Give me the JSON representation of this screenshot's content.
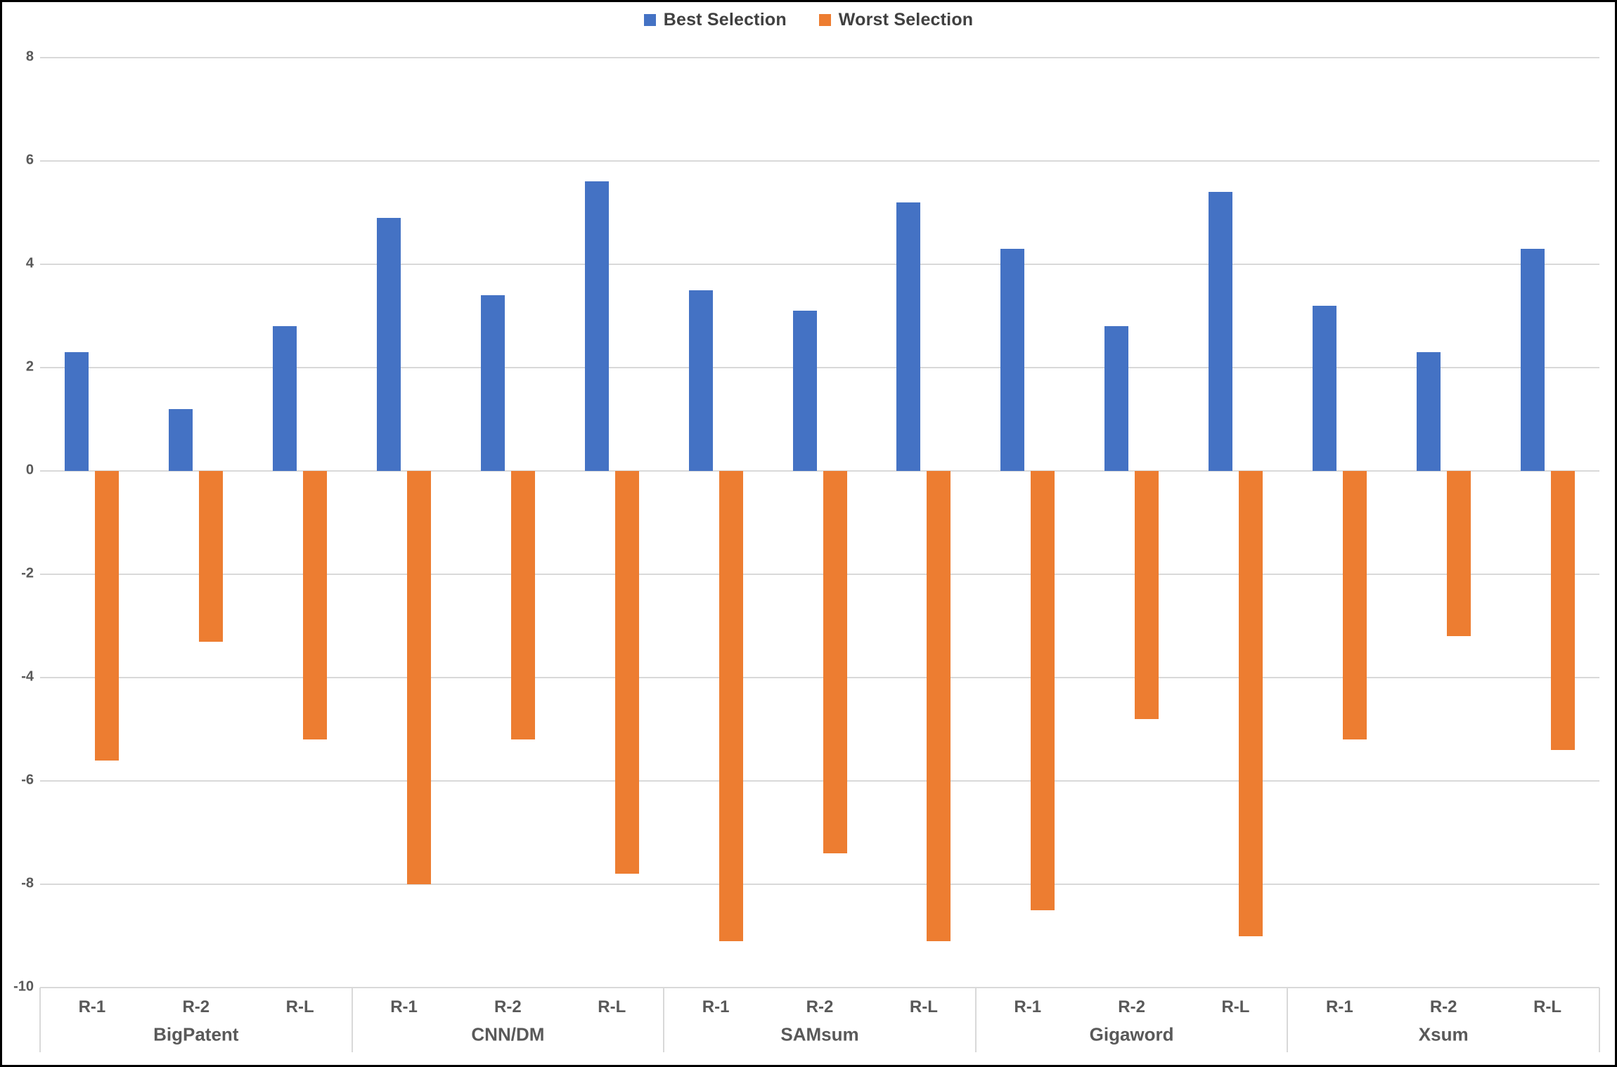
{
  "legend": {
    "items": [
      {
        "label": "Best Selection",
        "color": "#4472C4"
      },
      {
        "label": "Worst Selection",
        "color": "#ED7D31"
      }
    ]
  },
  "colors": {
    "best": "#4472C4",
    "worst": "#ED7D31",
    "gridline": "#D9D9D9",
    "axis_text": "#595959",
    "legend_text": "#404040",
    "background": "#FFFFFF",
    "frame": "#000000"
  },
  "chart_data": {
    "type": "bar",
    "title": "",
    "groups": [
      "BigPatent",
      "CNN/DM",
      "SAMsum",
      "Gigaword",
      "Xsum"
    ],
    "subcategories": [
      "R-1",
      "R-2",
      "R-L"
    ],
    "series": [
      {
        "name": "Best Selection",
        "color": "#4472C4",
        "values": [
          [
            2.3,
            1.2,
            2.8
          ],
          [
            4.9,
            3.4,
            5.6
          ],
          [
            3.5,
            3.1,
            5.2
          ],
          [
            4.3,
            2.8,
            5.4
          ],
          [
            3.2,
            2.3,
            4.3
          ]
        ]
      },
      {
        "name": "Worst Selection",
        "color": "#ED7D31",
        "values": [
          [
            -5.6,
            -3.3,
            -5.2
          ],
          [
            -8.0,
            -5.2,
            -7.8
          ],
          [
            -9.1,
            -7.4,
            -9.1
          ],
          [
            -8.5,
            -4.8,
            -9.0
          ],
          [
            -5.2,
            -3.2,
            -5.4
          ]
        ]
      }
    ],
    "y_axis": {
      "min": -10,
      "max": 8,
      "step": 2,
      "tick_labels": [
        "8",
        "6",
        "4",
        "2",
        "0",
        "-2",
        "-4",
        "-6",
        "-8",
        "-10"
      ]
    },
    "grid": true,
    "legend_position": "top-center"
  }
}
